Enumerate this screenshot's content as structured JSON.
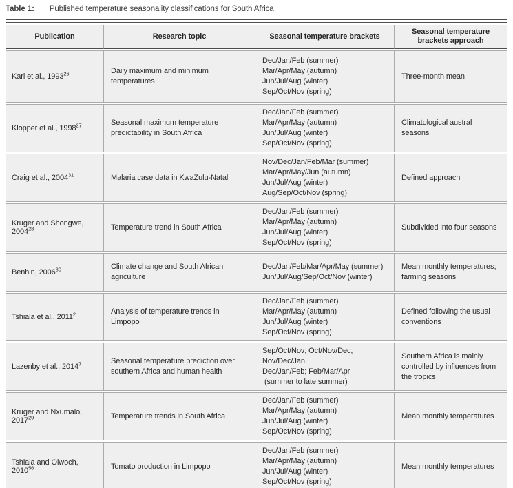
{
  "caption": {
    "label": "Table 1:",
    "text": "Published temperature seasonality classifications for South Africa"
  },
  "colors": {
    "cell_background": "#efefef",
    "cell_border": "#ababab",
    "heavy_rule": "#4d4d4d",
    "bottom_rule": "#8c8c8c",
    "text": "#2b2b2b"
  },
  "table": {
    "columns": [
      "Publication",
      "Research topic",
      "Seasonal temperature brackets",
      "Seasonal temperature brackets approach"
    ],
    "rows": [
      {
        "publication": "Karl et al., 1993",
        "ref": "26",
        "topic": "Daily maximum and minimum temperatures",
        "brackets": [
          "Dec/Jan/Feb (summer)",
          "Mar/Apr/May (autumn)",
          "Jun/Jul/Aug (winter)",
          "Sep/Oct/Nov (spring)"
        ],
        "approach": "Three-month mean"
      },
      {
        "publication": "Klopper et al., 1998",
        "ref": "27",
        "topic": "Seasonal maximum temperature predictability in South Africa",
        "brackets": [
          "Dec/Jan/Feb (summer)",
          "Mar/Apr/May (autumn)",
          "Jun/Jul/Aug (winter)",
          "Sep/Oct/Nov (spring)"
        ],
        "approach": "Climatological austral seasons"
      },
      {
        "publication": "Craig et al., 2004",
        "ref": "31",
        "topic": "Malaria case data in KwaZulu-Natal",
        "brackets": [
          "Nov/Dec/Jan/Feb/Mar (summer)",
          "Mar/Apr/May/Jun (autumn)",
          "Jun/Jul/Aug (winter)",
          "Aug/Sep/Oct/Nov (spring)"
        ],
        "approach": "Defined approach"
      },
      {
        "publication": "Kruger and Shongwe, 2004",
        "ref": "28",
        "topic": "Temperature trend in South Africa",
        "brackets": [
          "Dec/Jan/Feb (summer)",
          "Mar/Apr/May (autumn)",
          "Jun/Jul/Aug (winter)",
          "Sep/Oct/Nov (spring)"
        ],
        "approach": "Subdivided into four seasons"
      },
      {
        "publication": "Benhin, 2006",
        "ref": "30",
        "topic": "Climate change and South African agriculture",
        "brackets": [
          "Dec/Jan/Feb/Mar/Apr/May (summer)",
          "Jun/Jul/Aug/Sep/Oct/Nov (winter)"
        ],
        "approach": "Mean monthly temperatures; farming seasons"
      },
      {
        "publication": "Tshiala et al., 2011",
        "ref": "2",
        "topic": "Analysis of temperature trends in Limpopo",
        "brackets": [
          "Dec/Jan/Feb (summer)",
          "Mar/Apr/May (autumn)",
          "Jun/Jul/Aug (winter)",
          "Sep/Oct/Nov (spring)"
        ],
        "approach": "Defined following the usual conventions"
      },
      {
        "publication": "Lazenby et al., 2014",
        "ref": "7",
        "topic": "Seasonal temperature prediction over southern Africa and human health",
        "brackets": [
          "Sep/Oct/Nov; Oct/Nov/Dec; Nov/Dec/Jan",
          "Dec/Jan/Feb; Feb/Mar/Apr",
          " (summer to late summer)"
        ],
        "approach": "Southern Africa is mainly controlled by influences from the tropics"
      },
      {
        "publication": "Kruger and Nxumalo, 2017",
        "ref": "29",
        "topic": "Temperature trends in South Africa",
        "brackets": [
          "Dec/Jan/Feb (summer)",
          "Mar/Apr/May (autumn)",
          "Jun/Jul/Aug (winter)",
          "Sep/Oct/Nov (spring)"
        ],
        "approach": "Mean monthly temperatures"
      },
      {
        "publication": "Tshiala and Olwoch, 2010",
        "ref": "56",
        "topic": "Tomato production in Limpopo",
        "brackets": [
          "Dec/Jan/Feb (summer)",
          "Mar/Apr/May (autumn)",
          "Jun/Jul/Aug (winter)",
          "Sep/Oct/Nov (spring)"
        ],
        "approach": "Mean monthly temperatures"
      }
    ]
  }
}
